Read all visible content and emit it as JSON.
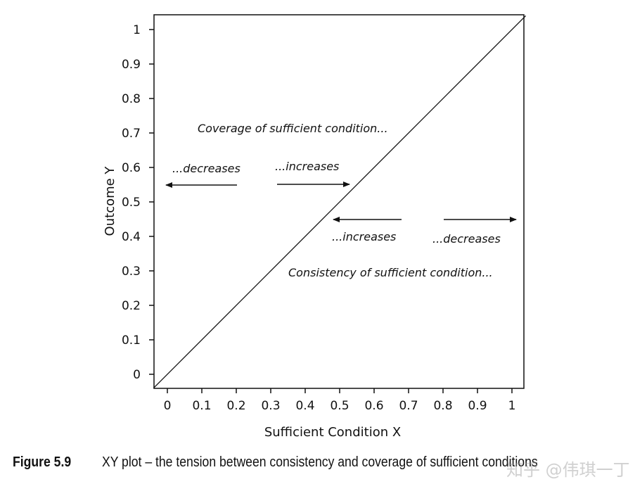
{
  "chart_data": {
    "type": "line",
    "title": "",
    "xlabel": "Sufficient Condition X",
    "ylabel": "Outcome Y",
    "xlim": [
      0,
      1
    ],
    "ylim": [
      0,
      1
    ],
    "xticks": [
      "0",
      "0.1",
      "0.2",
      "0.3",
      "0.4",
      "0.5",
      "0.6",
      "0.7",
      "0.8",
      "0.9",
      "1"
    ],
    "yticks": [
      "0",
      "0.1",
      "0.2",
      "0.3",
      "0.4",
      "0.5",
      "0.6",
      "0.7",
      "0.8",
      "0.9",
      "1"
    ],
    "grid": false,
    "series": [
      {
        "name": "diagonal",
        "x": [
          -0.04,
          1.04
        ],
        "y": [
          -0.04,
          1.04
        ]
      }
    ],
    "annotations": {
      "coverage": "Coverage of sufficient condition...",
      "coverage_left": "...decreases",
      "coverage_right": "...increases",
      "consistency": "Consistency of sufficient condition...",
      "consistency_left": "...increases",
      "consistency_right": "...decreases"
    }
  },
  "caption": {
    "label": "Figure 5.9",
    "text": "XY plot – the tension between consistency and coverage of sufficient conditions"
  },
  "watermark": "知乎 @伟琪一丁",
  "colors": {
    "ink": "#111111"
  }
}
